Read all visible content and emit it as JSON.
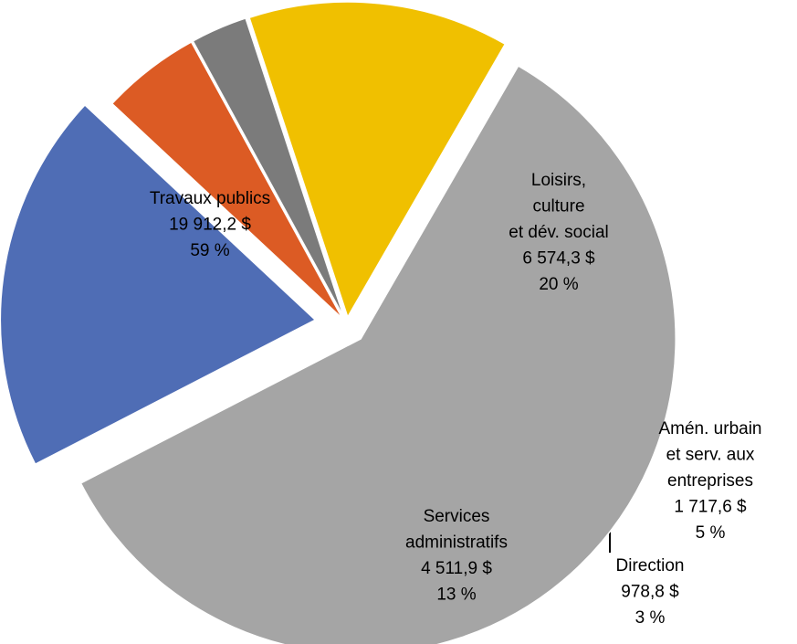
{
  "chart_data": {
    "type": "pie",
    "categories": [
      [
        "Travaux publics"
      ],
      [
        "Loisirs,",
        "culture",
        "et dév. social"
      ],
      [
        "Amén. urbain",
        "et serv. aux",
        "entreprises"
      ],
      [
        "Direction"
      ],
      [
        "Services",
        "administratifs"
      ]
    ],
    "values": [
      19912.2,
      6574.3,
      1717.6,
      978.8,
      4511.9
    ],
    "value_labels": [
      "19 912,2  $",
      "6 574,3  $",
      "1 717,6  $",
      "978,8  $",
      "4 511,9  $"
    ],
    "percentages": [
      59,
      20,
      5,
      3,
      13
    ],
    "percentage_labels": [
      "59 %",
      "20 %",
      "5 %",
      "3 %",
      "13 %"
    ],
    "colors": [
      "#a5a5a5",
      "#4f6db5",
      "#dc5b24",
      "#7b7b7b",
      "#f0c000"
    ]
  }
}
